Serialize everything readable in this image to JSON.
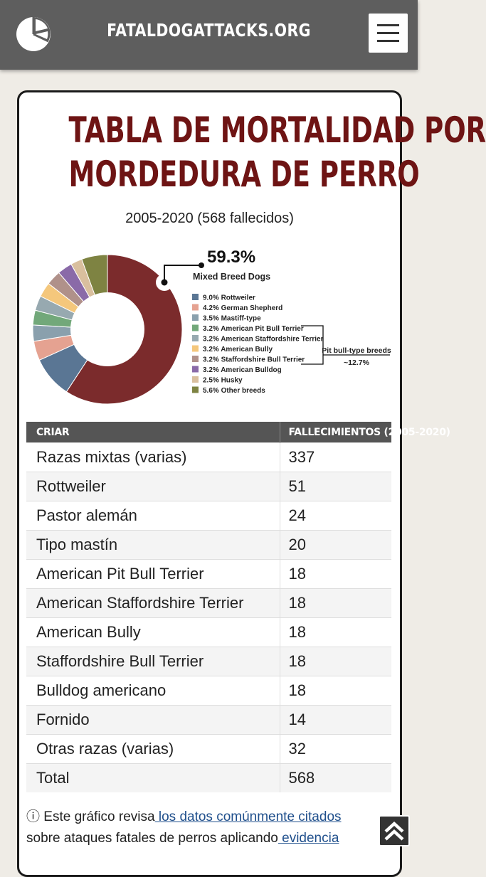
{
  "header": {
    "site_title": "FATALDOGATTACKS.ORG",
    "logo_icon": "pie-chart-logo-icon",
    "menu_icon": "hamburger-menu-icon"
  },
  "main": {
    "title_line1": "TABLA DE MORTALIDAD POR",
    "title_line2": "MORDEDURA DE PERRO",
    "subtitle": "2005-2020 (568 fallecidos)"
  },
  "chart_data": {
    "type": "pie",
    "title": "",
    "highlight": {
      "value_label": "59.3%",
      "label": "Mixed Breed Dogs"
    },
    "slices": [
      {
        "label": "Mixed Breed Dogs",
        "value": 59.3,
        "color": "#7b2b2c"
      },
      {
        "label": "9.0% Rottweiler",
        "value": 9.0,
        "color": "#5a7694"
      },
      {
        "label": "4.2% German Shepherd",
        "value": 4.2,
        "color": "#e5a291"
      },
      {
        "label": "3.5% Mastiff-type",
        "value": 3.5,
        "color": "#8aa0ad"
      },
      {
        "label": "3.2% American Pit Bull Terrier",
        "value": 3.2,
        "color": "#72a87a"
      },
      {
        "label": "3.2% American Staffordshire Terrier",
        "value": 3.2,
        "color": "#97a9b0"
      },
      {
        "label": "3.2% American Bully",
        "value": 3.2,
        "color": "#f4c77c"
      },
      {
        "label": "3.2% Staffordshire Bull Terrier",
        "value": 3.2,
        "color": "#b0918a"
      },
      {
        "label": "3.2% American Bulldog",
        "value": 3.2,
        "color": "#8a6aa8"
      },
      {
        "label": "2.5% Husky",
        "value": 2.5,
        "color": "#d9bf9e"
      },
      {
        "label": "5.6% Other breeds",
        "value": 5.6,
        "color": "#7e8342"
      }
    ],
    "bracket_label_line1": "Pit bull-type breeds",
    "bracket_label_line2": "~12.7%"
  },
  "table": {
    "headers": [
      "CRIAR",
      "FALLECIMIENTOS (2005-2020)"
    ],
    "rows": [
      {
        "breed": "Razas mixtas (varias)",
        "deaths": "337"
      },
      {
        "breed": "Rottweiler",
        "deaths": "51"
      },
      {
        "breed": "Pastor alemán",
        "deaths": "24"
      },
      {
        "breed": "Tipo mastín",
        "deaths": "20"
      },
      {
        "breed": "American Pit Bull Terrier",
        "deaths": "18"
      },
      {
        "breed": "American Staffordshire Terrier",
        "deaths": "18"
      },
      {
        "breed": "American Bully",
        "deaths": "18"
      },
      {
        "breed": "Staffordshire Bull Terrier",
        "deaths": "18"
      },
      {
        "breed": "Bulldog americano",
        "deaths": "18"
      },
      {
        "breed": "Fornido",
        "deaths": "14"
      },
      {
        "breed": "Otras razas (varias)",
        "deaths": "32"
      },
      {
        "breed": "Total",
        "deaths": "568"
      }
    ]
  },
  "note": {
    "info_icon": "ⓘ",
    "text_before": " Este gráfico revisa",
    "link1": " los datos comúnmente citados",
    "text_middle": " sobre ataques fatales de perros aplicando",
    "link2": " evidencia"
  },
  "scroll_top_icon": "chevron-up-icon"
}
